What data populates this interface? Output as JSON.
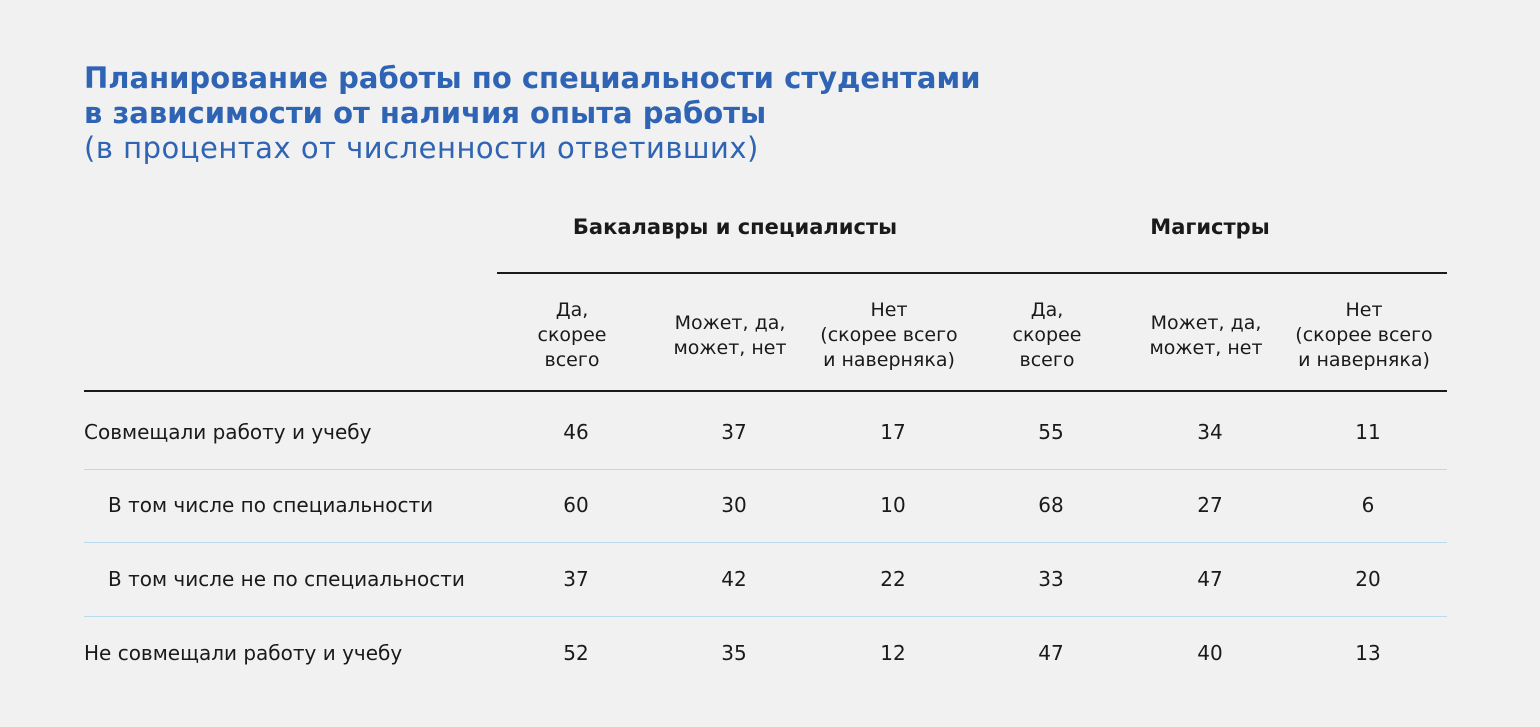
{
  "header": {
    "title_lines": [
      "Планирование работы по специальности студентами",
      "в зависимости от наличия опыта работы"
    ],
    "subtitle": "(в процентах от численности ответивших)"
  },
  "table": {
    "groups": [
      "Бакалавры и специалисты",
      "Магистры"
    ],
    "columns": [
      [
        "Да,",
        "скорее",
        "всего"
      ],
      [
        "Может, да,",
        "может, нет"
      ],
      [
        "Нет",
        "(скорее всего",
        "и наверняка)"
      ],
      [
        "Да,",
        "скорее",
        "всего"
      ],
      [
        "Может, да,",
        "может, нет"
      ],
      [
        "Нет",
        "(скорее всего",
        "и наверняка)"
      ]
    ],
    "row_labels": [
      "Совмещали работу и учебу",
      "В том числе по специальности",
      "В том числе не по специальности",
      "Не совмещали работу и учебу"
    ],
    "rows": [
      [
        46,
        37,
        17,
        55,
        34,
        11
      ],
      [
        60,
        30,
        10,
        68,
        27,
        6
      ],
      [
        37,
        42,
        22,
        33,
        47,
        20
      ],
      [
        52,
        35,
        12,
        47,
        40,
        13
      ]
    ]
  }
}
